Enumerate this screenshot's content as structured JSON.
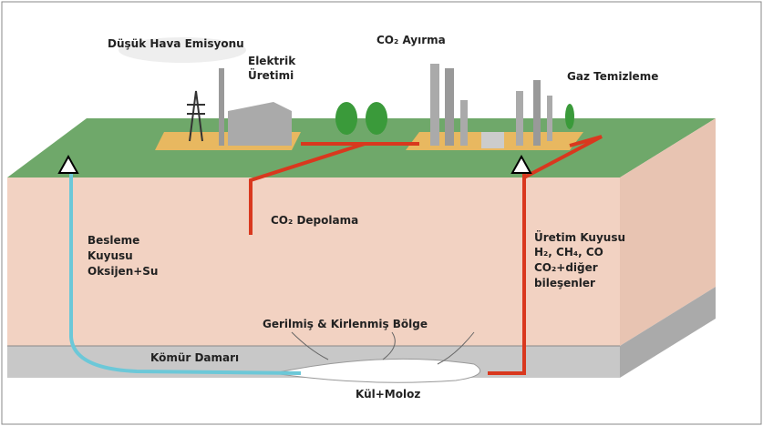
{
  "labels": {
    "emission": "Düşük Hava Emisyonu",
    "power": [
      "Elektrik",
      "Üretimi"
    ],
    "co2_separation": "CO₂ Ayırma",
    "gas_cleaning": "Gaz Temizleme",
    "co2_storage": "CO₂ Depolama",
    "injection_well": [
      "Besleme",
      "Kuyusu",
      "Oksijen+Su"
    ],
    "production_well": [
      "Üretim Kuyusu",
      "H₂, CH₄, CO",
      "CO₂+diğer",
      "bileşenler"
    ],
    "stressed_zone": "Gerilmiş & Kirlenmiş Bölge",
    "coal_seam": "Kömür Damarı",
    "ash": "Kül+Moloz"
  }
}
